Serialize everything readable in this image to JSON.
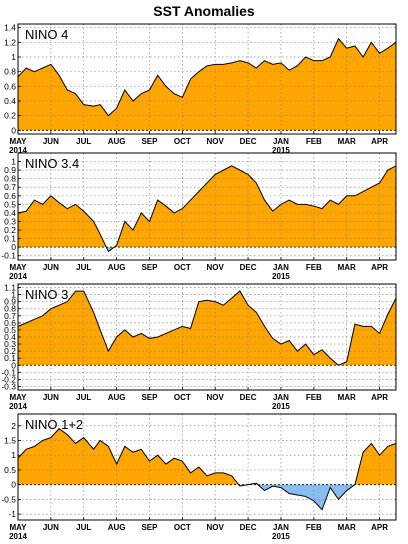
{
  "title": "SST Anomalies",
  "colors": {
    "positive": "#FFA500",
    "negative": "#87BEF0",
    "line": "#000000",
    "grid": "#888888"
  },
  "chart_data": [
    {
      "type": "area",
      "title": "NINO 4",
      "xlabels": [
        {
          "label": "MAY",
          "sub": "2014"
        },
        {
          "label": "JUN",
          "sub": ""
        },
        {
          "label": "JUL",
          "sub": ""
        },
        {
          "label": "AUG",
          "sub": ""
        },
        {
          "label": "SEP",
          "sub": ""
        },
        {
          "label": "OCT",
          "sub": ""
        },
        {
          "label": "NOV",
          "sub": ""
        },
        {
          "label": "DEC",
          "sub": ""
        },
        {
          "label": "JAN",
          "sub": "2015"
        },
        {
          "label": "FEB",
          "sub": ""
        },
        {
          "label": "MAR",
          "sub": ""
        },
        {
          "label": "APR",
          "sub": ""
        }
      ],
      "ylim": [
        -0.05,
        1.45
      ],
      "yticks": [
        0,
        0.2,
        0.4,
        0.6,
        0.8,
        1,
        1.2,
        1.4
      ],
      "ytick_labels": [
        "0",
        "0.2",
        "0.4",
        "0.6",
        "0.8",
        "1",
        "1.2",
        "1.4"
      ],
      "x": [
        0,
        0.25,
        0.5,
        0.75,
        1.0,
        1.25,
        1.5,
        1.75,
        2.0,
        2.3,
        2.5,
        2.75,
        3.0,
        3.25,
        3.5,
        3.75,
        4.0,
        4.25,
        4.5,
        4.75,
        5.0,
        5.25,
        5.5,
        5.75,
        6.0,
        6.25,
        6.5,
        6.75,
        7.0,
        7.25,
        7.5,
        7.75,
        8.0,
        8.25,
        8.5,
        8.75,
        9.0,
        9.25,
        9.5,
        9.75,
        10.0,
        10.25,
        10.5,
        10.75,
        11.0,
        11.25,
        11.5
      ],
      "y": [
        0.73,
        0.85,
        0.8,
        0.85,
        0.9,
        0.75,
        0.55,
        0.5,
        0.35,
        0.33,
        0.35,
        0.2,
        0.3,
        0.55,
        0.4,
        0.5,
        0.55,
        0.75,
        0.6,
        0.5,
        0.45,
        0.7,
        0.8,
        0.88,
        0.9,
        0.9,
        0.92,
        0.95,
        0.92,
        0.85,
        0.95,
        0.9,
        0.92,
        0.82,
        0.88,
        1.0,
        0.95,
        0.95,
        1.0,
        1.25,
        1.12,
        1.15,
        1.0,
        1.2,
        1.05,
        1.12,
        1.2
      ]
    },
    {
      "type": "area",
      "title": "NINO 3.4",
      "xlabels": [
        {
          "label": "MAY",
          "sub": "2014"
        },
        {
          "label": "JUN",
          "sub": ""
        },
        {
          "label": "JUL",
          "sub": ""
        },
        {
          "label": "AUG",
          "sub": ""
        },
        {
          "label": "SEP",
          "sub": ""
        },
        {
          "label": "OCT",
          "sub": ""
        },
        {
          "label": "NOV",
          "sub": ""
        },
        {
          "label": "DEC",
          "sub": ""
        },
        {
          "label": "JAN",
          "sub": "2015"
        },
        {
          "label": "FEB",
          "sub": ""
        },
        {
          "label": "MAR",
          "sub": ""
        },
        {
          "label": "APR",
          "sub": ""
        }
      ],
      "ylim": [
        -0.15,
        1.1
      ],
      "yticks": [
        -0.1,
        0,
        0.1,
        0.2,
        0.3,
        0.4,
        0.5,
        0.6,
        0.7,
        0.8,
        0.9,
        1
      ],
      "ytick_labels": [
        "-0.1",
        "0",
        "0.1",
        "0.2",
        "0.3",
        "0.4",
        "0.5",
        "0.6",
        "0.7",
        "0.8",
        "0.9",
        "1"
      ],
      "x": [
        0,
        0.25,
        0.5,
        0.75,
        1.0,
        1.25,
        1.5,
        1.75,
        2.0,
        2.3,
        2.5,
        2.75,
        3.0,
        3.25,
        3.5,
        3.75,
        4.0,
        4.25,
        4.5,
        4.75,
        5.0,
        5.25,
        5.5,
        5.75,
        6.0,
        6.25,
        6.5,
        6.75,
        7.0,
        7.25,
        7.5,
        7.75,
        8.0,
        8.25,
        8.5,
        8.75,
        9.0,
        9.25,
        9.5,
        9.75,
        10.0,
        10.25,
        10.5,
        10.75,
        11.0,
        11.25,
        11.5
      ],
      "y": [
        0.4,
        0.42,
        0.55,
        0.5,
        0.6,
        0.52,
        0.45,
        0.5,
        0.42,
        0.3,
        0.15,
        -0.05,
        0.02,
        0.3,
        0.2,
        0.4,
        0.3,
        0.55,
        0.48,
        0.4,
        0.45,
        0.55,
        0.65,
        0.75,
        0.85,
        0.9,
        0.95,
        0.9,
        0.85,
        0.75,
        0.55,
        0.42,
        0.5,
        0.55,
        0.5,
        0.5,
        0.48,
        0.45,
        0.55,
        0.5,
        0.6,
        0.6,
        0.65,
        0.7,
        0.75,
        0.9,
        0.95
      ]
    },
    {
      "type": "area",
      "title": "NINO 3",
      "xlabels": [
        {
          "label": "MAY",
          "sub": "2014"
        },
        {
          "label": "JUN",
          "sub": ""
        },
        {
          "label": "JUL",
          "sub": ""
        },
        {
          "label": "AUG",
          "sub": ""
        },
        {
          "label": "SEP",
          "sub": ""
        },
        {
          "label": "OCT",
          "sub": ""
        },
        {
          "label": "NOV",
          "sub": ""
        },
        {
          "label": "DEC",
          "sub": ""
        },
        {
          "label": "JAN",
          "sub": "2015"
        },
        {
          "label": "FEB",
          "sub": ""
        },
        {
          "label": "MAR",
          "sub": ""
        },
        {
          "label": "APR",
          "sub": ""
        }
      ],
      "ylim": [
        -0.35,
        1.15
      ],
      "yticks": [
        -0.3,
        -0.2,
        -0.1,
        0,
        0.1,
        0.2,
        0.3,
        0.4,
        0.5,
        0.6,
        0.7,
        0.8,
        0.9,
        1,
        1.1
      ],
      "ytick_labels": [
        "-0.3",
        "-0.2",
        "-0.1",
        "0",
        "0.1",
        "0.2",
        "0.3",
        "0.4",
        "0.5",
        "0.6",
        "0.7",
        "0.8",
        "0.9",
        "1",
        "1.1"
      ],
      "x": [
        0,
        0.25,
        0.5,
        0.75,
        1.0,
        1.25,
        1.5,
        1.75,
        2.0,
        2.3,
        2.5,
        2.75,
        3.0,
        3.25,
        3.5,
        3.75,
        4.0,
        4.25,
        4.5,
        4.75,
        5.0,
        5.25,
        5.5,
        5.75,
        6.0,
        6.25,
        6.5,
        6.75,
        7.0,
        7.25,
        7.5,
        7.75,
        8.0,
        8.25,
        8.5,
        8.75,
        9.0,
        9.25,
        9.5,
        9.75,
        10.0,
        10.25,
        10.5,
        10.75,
        11.0,
        11.25,
        11.5
      ],
      "y": [
        0.55,
        0.6,
        0.65,
        0.7,
        0.8,
        0.85,
        0.9,
        1.05,
        1.05,
        0.75,
        0.5,
        0.2,
        0.4,
        0.5,
        0.4,
        0.45,
        0.38,
        0.4,
        0.45,
        0.5,
        0.55,
        0.52,
        0.9,
        0.92,
        0.9,
        0.85,
        0.95,
        1.05,
        0.85,
        0.75,
        0.55,
        0.38,
        0.3,
        0.35,
        0.2,
        0.3,
        0.15,
        0.22,
        0.1,
        0.0,
        0.05,
        0.58,
        0.55,
        0.55,
        0.45,
        0.72,
        0.95
      ]
    },
    {
      "type": "area",
      "title": "NINO 1+2",
      "xlabels": [
        {
          "label": "MAY",
          "sub": "2014"
        },
        {
          "label": "JUN",
          "sub": ""
        },
        {
          "label": "JUL",
          "sub": ""
        },
        {
          "label": "AUG",
          "sub": ""
        },
        {
          "label": "SEP",
          "sub": ""
        },
        {
          "label": "OCT",
          "sub": ""
        },
        {
          "label": "NOV",
          "sub": ""
        },
        {
          "label": "DEC",
          "sub": ""
        },
        {
          "label": "JAN",
          "sub": "2015"
        },
        {
          "label": "FEB",
          "sub": ""
        },
        {
          "label": "MAR",
          "sub": ""
        },
        {
          "label": "APR",
          "sub": ""
        }
      ],
      "ylim": [
        -1.2,
        2.4
      ],
      "yticks": [
        -1,
        -0.5,
        0,
        0.5,
        1,
        1.5,
        2
      ],
      "ytick_labels": [
        "-1",
        "-0.5",
        "0",
        "0.5",
        "1",
        "1.5",
        "2"
      ],
      "x": [
        0,
        0.25,
        0.5,
        0.75,
        1.0,
        1.25,
        1.5,
        1.75,
        2.0,
        2.3,
        2.5,
        2.75,
        3.0,
        3.25,
        3.5,
        3.75,
        4.0,
        4.25,
        4.5,
        4.75,
        5.0,
        5.25,
        5.5,
        5.75,
        6.0,
        6.25,
        6.5,
        6.75,
        7.0,
        7.25,
        7.5,
        7.75,
        8.0,
        8.25,
        8.5,
        8.75,
        9.0,
        9.25,
        9.5,
        9.75,
        10.0,
        10.25,
        10.5,
        10.75,
        11.0,
        11.25,
        11.5
      ],
      "y": [
        0.9,
        1.2,
        1.3,
        1.5,
        1.6,
        1.9,
        1.7,
        1.4,
        1.6,
        1.2,
        1.5,
        1.3,
        0.7,
        1.3,
        1.1,
        1.2,
        0.8,
        1.0,
        0.7,
        0.9,
        0.8,
        0.4,
        0.6,
        0.3,
        0.4,
        0.4,
        0.3,
        -0.05,
        0.0,
        0.05,
        -0.2,
        -0.05,
        -0.1,
        -0.3,
        -0.35,
        -0.4,
        -0.55,
        -0.85,
        -0.1,
        -0.5,
        -0.2,
        0.0,
        1.1,
        1.4,
        1.0,
        1.3,
        1.4
      ]
    }
  ]
}
